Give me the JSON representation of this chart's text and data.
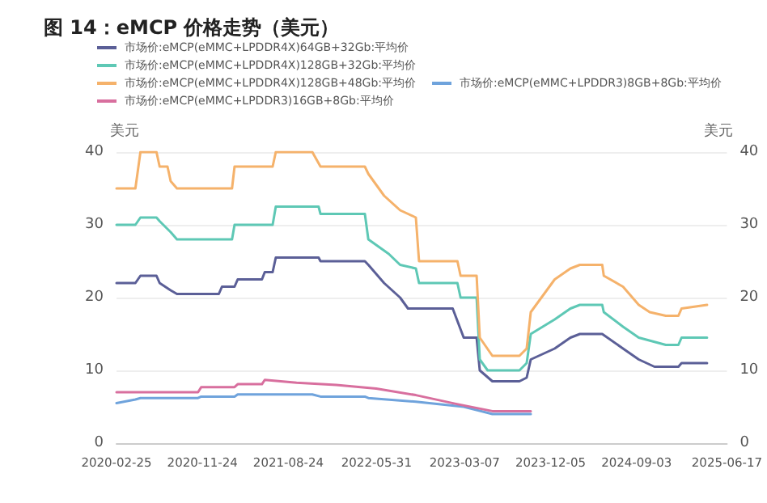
{
  "chart_data": {
    "type": "line",
    "title": "图 14：eMCP 价格走势（美元）",
    "ylabel": "美元",
    "y2label": "美元",
    "xlim": [
      "2020-02-25",
      "2025-06-17"
    ],
    "xticks": [
      "2020-02-25",
      "2020-11-24",
      "2021-08-24",
      "2022-05-31",
      "2023-03-07",
      "2023-12-05",
      "2024-09-03",
      "2025-06-17"
    ],
    "ylim": [
      0,
      40
    ],
    "yticks": [
      0,
      10,
      20,
      30,
      40
    ],
    "y2lim": [
      0,
      40
    ],
    "y2ticks": [
      0,
      10,
      20,
      30,
      40
    ],
    "grid": "y",
    "legend": "top",
    "marker": "none",
    "line_style": "solid",
    "series": [
      {
        "name": "市场价:eMCP(eMMC+LPDDR4X)64GB+32Gb:平均价",
        "color": "#5b5f97",
        "x": [
          "2020-02-25",
          "2020-04-25",
          "2020-05-11",
          "2020-07-01",
          "2020-07-11",
          "2020-08-15",
          "2020-09-04",
          "2021-01-15",
          "2021-01-25",
          "2021-03-06",
          "2021-03-16",
          "2021-06-01",
          "2021-06-10",
          "2021-07-05",
          "2021-07-15",
          "2021-11-28",
          "2021-12-04",
          "2022-04-24",
          "2022-05-05",
          "2022-06-24",
          "2022-08-14",
          "2022-09-08",
          "2023-01-28",
          "2023-03-04",
          "2023-04-14",
          "2023-04-24",
          "2023-06-03",
          "2023-08-28",
          "2023-09-20",
          "2023-10-03",
          "2023-12-18",
          "2024-02-06",
          "2024-03-07",
          "2024-05-17",
          "2024-07-22",
          "2024-09-10",
          "2024-10-30",
          "2025-01-14",
          "2025-01-24",
          "2025-04-15"
        ],
        "values": [
          22,
          22,
          23,
          23,
          22,
          21,
          20.5,
          20.5,
          21.5,
          21.5,
          22.5,
          22.5,
          23.5,
          23.5,
          25.5,
          25.5,
          25,
          25,
          24.5,
          22,
          20,
          18.5,
          18.5,
          14.5,
          14.5,
          10,
          8.5,
          8.5,
          9,
          11.5,
          13,
          14.5,
          15,
          15,
          13,
          11.5,
          10.5,
          10.5,
          11,
          11
        ]
      },
      {
        "name": "市场价:eMCP(eMMC+LPDDR4X)128GB+32Gb:平均价",
        "color": "#5ec8b5",
        "x": [
          "2020-02-25",
          "2020-04-25",
          "2020-05-11",
          "2020-07-01",
          "2020-07-11",
          "2020-08-15",
          "2020-09-04",
          "2021-02-26",
          "2021-03-06",
          "2021-07-05",
          "2021-07-15",
          "2021-11-28",
          "2021-12-04",
          "2022-04-24",
          "2022-05-05",
          "2022-07-09",
          "2022-08-14",
          "2022-10-03",
          "2022-10-13",
          "2023-02-12",
          "2023-02-22",
          "2023-04-14",
          "2023-04-24",
          "2023-05-19",
          "2023-08-28",
          "2023-09-20",
          "2023-10-03",
          "2023-12-18",
          "2024-02-06",
          "2024-03-07",
          "2024-05-17",
          "2024-05-22",
          "2024-07-22",
          "2024-09-10",
          "2024-12-05",
          "2025-01-14",
          "2025-01-24",
          "2025-04-15"
        ],
        "values": [
          30,
          30,
          31,
          31,
          30.5,
          29,
          28,
          28,
          30,
          30,
          32.5,
          32.5,
          31.5,
          31.5,
          28,
          26,
          24.5,
          24,
          22,
          22,
          20,
          20,
          11.5,
          10,
          10,
          11,
          15,
          17,
          18.5,
          19,
          19,
          18,
          16,
          14.5,
          13.5,
          13.5,
          14.5,
          14.5
        ]
      },
      {
        "name": "市场价:eMCP(eMMC+LPDDR4X)128GB+48Gb:平均价",
        "color": "#f5b26b",
        "x": [
          "2020-02-25",
          "2020-04-25",
          "2020-05-11",
          "2020-07-01",
          "2020-07-11",
          "2020-08-05",
          "2020-08-15",
          "2020-09-04",
          "2021-02-26",
          "2021-03-06",
          "2021-07-05",
          "2021-07-15",
          "2021-11-08",
          "2021-12-04",
          "2022-04-24",
          "2022-05-05",
          "2022-06-24",
          "2022-08-14",
          "2022-10-03",
          "2022-10-13",
          "2023-02-12",
          "2023-02-22",
          "2023-04-14",
          "2023-04-24",
          "2023-06-03",
          "2023-08-28",
          "2023-09-20",
          "2023-10-03",
          "2023-12-18",
          "2024-02-06",
          "2024-03-07",
          "2024-05-17",
          "2024-05-22",
          "2024-07-22",
          "2024-09-10",
          "2024-10-15",
          "2024-12-05",
          "2025-01-14",
          "2025-01-24",
          "2025-04-15"
        ],
        "values": [
          35,
          35,
          40,
          40,
          38,
          38,
          36,
          35,
          35,
          38,
          38,
          40,
          40,
          38,
          38,
          37,
          34,
          32,
          31,
          25,
          25,
          23,
          23,
          14.5,
          12,
          12,
          13,
          18,
          22.5,
          24,
          24.5,
          24.5,
          23,
          21.5,
          19,
          18,
          17.5,
          17.5,
          18.5,
          19
        ]
      },
      {
        "name": "市场价:eMCP(eMMC+LPDDR3)8GB+8Gb:平均价",
        "color": "#6fa3dc",
        "x": [
          "2020-02-25",
          "2020-04-25",
          "2020-05-11",
          "2020-11-10",
          "2020-11-20",
          "2021-03-06",
          "2021-03-16",
          "2021-11-08",
          "2021-12-04",
          "2022-04-24",
          "2022-05-05",
          "2022-10-03",
          "2023-03-04",
          "2023-06-03",
          "2023-10-03"
        ],
        "values": [
          5.5,
          6,
          6.2,
          6.2,
          6.4,
          6.4,
          6.7,
          6.7,
          6.4,
          6.4,
          6.2,
          5.7,
          5,
          4,
          4
        ]
      },
      {
        "name": "市场价:eMCP(eMMC+LPDDR3)16GB+8Gb:平均价",
        "color": "#d86f9e",
        "x": [
          "2020-02-25",
          "2020-11-10",
          "2020-11-20",
          "2021-03-06",
          "2021-03-16",
          "2021-06-01",
          "2021-06-10",
          "2021-09-19",
          "2022-01-23",
          "2022-05-30",
          "2022-10-03",
          "2023-02-07",
          "2023-06-03",
          "2023-10-03"
        ],
        "values": [
          7,
          7,
          7.7,
          7.7,
          8.1,
          8.1,
          8.7,
          8.3,
          8,
          7.5,
          6.6,
          5.4,
          4.4,
          4.4
        ]
      }
    ]
  }
}
